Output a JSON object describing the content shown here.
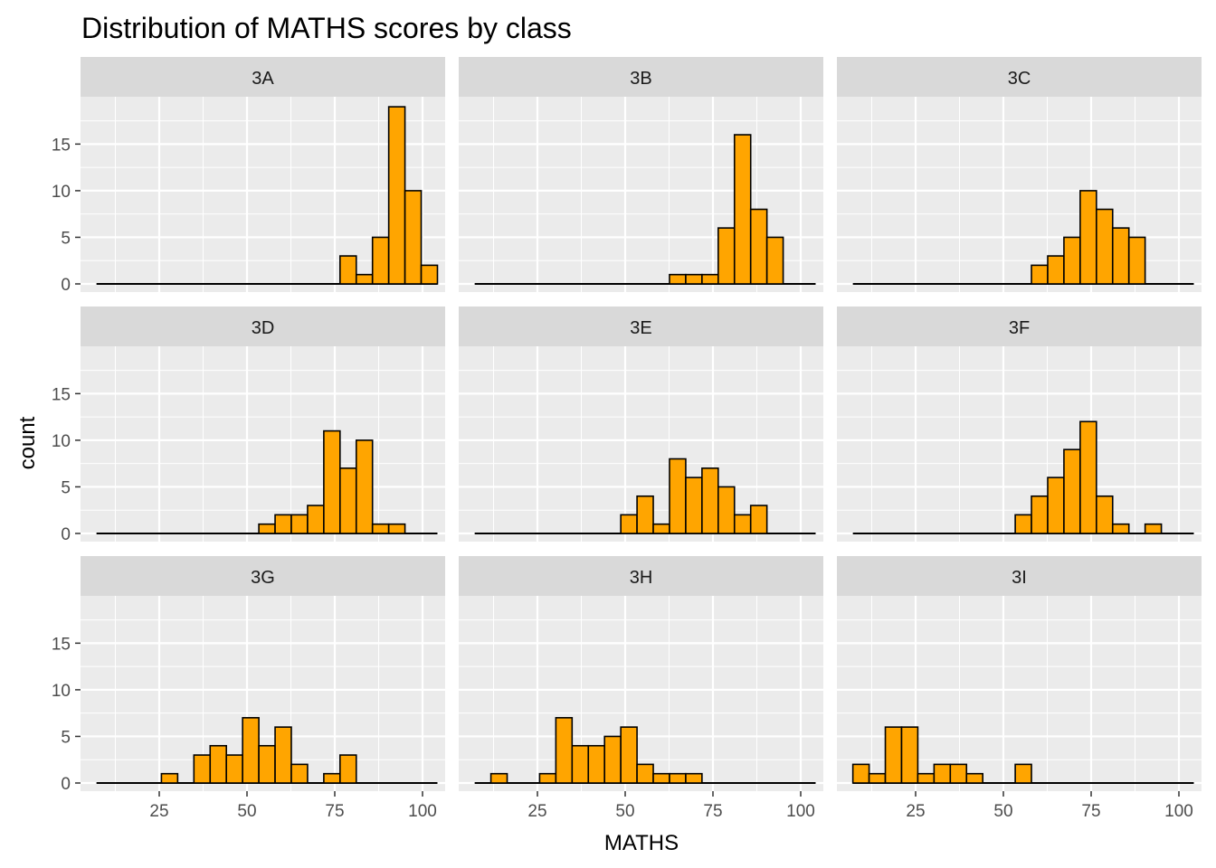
{
  "chart_data": {
    "type": "histogram",
    "title": "Distribution of MATHS scores by class",
    "xlabel": "MATHS",
    "ylabel": "count",
    "xlim": [
      5,
      102.5
    ],
    "ylim": [
      0,
      19
    ],
    "x_ticks": [
      25,
      50,
      75,
      100
    ],
    "y_ticks": [
      0,
      5,
      10,
      15
    ],
    "grid": true,
    "bin_width": 4.625,
    "bin_starts": [
      7.125,
      11.75,
      16.375,
      21,
      25.625,
      30.25,
      34.875,
      39.5,
      44.125,
      48.75,
      53.375,
      58,
      62.625,
      67.25,
      71.875,
      76.5,
      81.125,
      85.75,
      90.375,
      95,
      99.625
    ],
    "colors": {
      "bar_fill": "#FFA500",
      "bar_stroke": "#000000",
      "panel_bg": "#EBEBEB",
      "strip_bg": "#D9D9D9",
      "grid": "#FFFFFF"
    },
    "panels": [
      {
        "class": "3A",
        "counts": [
          0,
          0,
          0,
          0,
          0,
          0,
          0,
          0,
          0,
          0,
          0,
          0,
          0,
          0,
          0,
          3,
          1,
          5,
          19,
          10,
          2
        ]
      },
      {
        "class": "3B",
        "counts": [
          0,
          0,
          0,
          0,
          0,
          0,
          0,
          0,
          0,
          0,
          0,
          0,
          1,
          1,
          1,
          6,
          16,
          8,
          5,
          0,
          0
        ]
      },
      {
        "class": "3C",
        "counts": [
          0,
          0,
          0,
          0,
          0,
          0,
          0,
          0,
          0,
          0,
          0,
          2,
          3,
          5,
          10,
          8,
          6,
          5,
          0,
          0,
          0
        ]
      },
      {
        "class": "3D",
        "counts": [
          0,
          0,
          0,
          0,
          0,
          0,
          0,
          0,
          0,
          0,
          1,
          2,
          2,
          3,
          11,
          7,
          10,
          1,
          1,
          0,
          0
        ]
      },
      {
        "class": "3E",
        "counts": [
          0,
          0,
          0,
          0,
          0,
          0,
          0,
          0,
          0,
          2,
          4,
          1,
          8,
          6,
          7,
          5,
          2,
          3,
          0,
          0,
          0
        ]
      },
      {
        "class": "3F",
        "counts": [
          0,
          0,
          0,
          0,
          0,
          0,
          0,
          0,
          0,
          0,
          2,
          4,
          6,
          9,
          12,
          4,
          1,
          0,
          1,
          0,
          0
        ]
      },
      {
        "class": "3G",
        "counts": [
          0,
          0,
          0,
          0,
          1,
          0,
          3,
          4,
          3,
          7,
          4,
          6,
          2,
          0,
          1,
          3,
          0,
          0,
          0,
          0,
          0
        ]
      },
      {
        "class": "3H",
        "counts": [
          0,
          1,
          0,
          0,
          1,
          7,
          4,
          4,
          5,
          6,
          2,
          1,
          1,
          1,
          0,
          0,
          0,
          0,
          0,
          0,
          0
        ]
      },
      {
        "class": "3I",
        "counts": [
          2,
          1,
          6,
          6,
          1,
          2,
          2,
          1,
          0,
          0,
          2,
          0,
          0,
          0,
          0,
          0,
          0,
          0,
          0,
          0,
          0
        ]
      }
    ]
  }
}
